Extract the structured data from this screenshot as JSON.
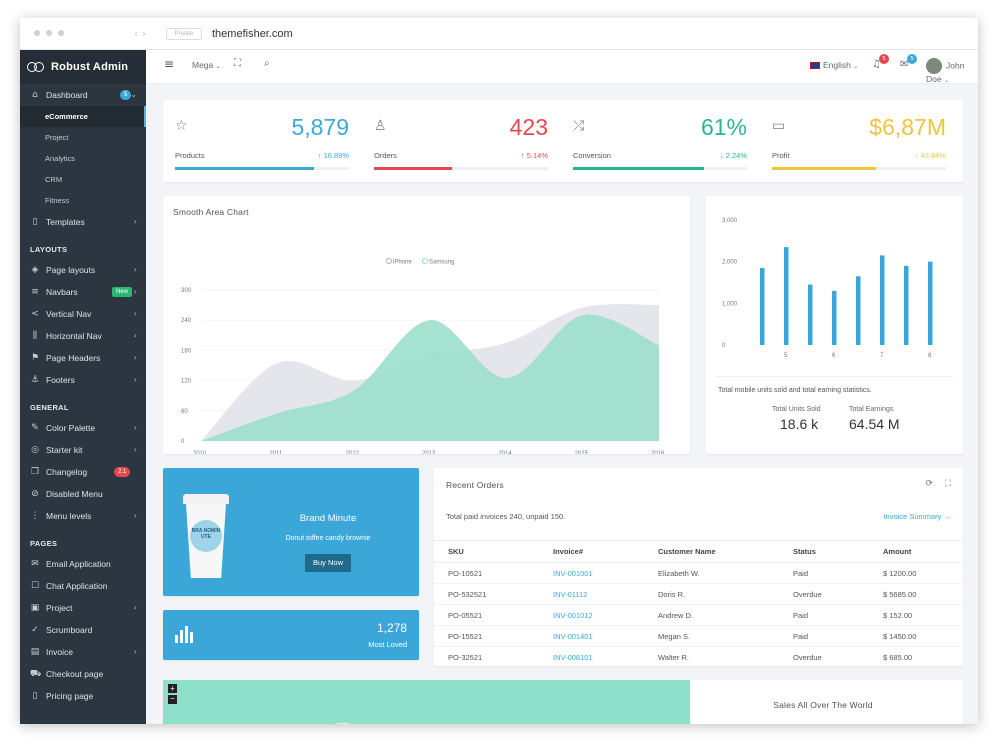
{
  "browser": {
    "url_tag": "Private",
    "url": "themefisher.com"
  },
  "brand": {
    "name": "Robust Admin"
  },
  "sidebar": {
    "dashboard": {
      "label": "Dashboard",
      "badge": "5"
    },
    "dashboard_sub": [
      "eCommerce",
      "Project",
      "Analytics",
      "CRM",
      "Fitness"
    ],
    "templates": "Templates",
    "layouts_title": "LAYOUTS",
    "layouts": [
      {
        "label": "Page layouts",
        "icon": "layers-icon"
      },
      {
        "label": "Navbars",
        "icon": "list-icon",
        "badge": "New"
      },
      {
        "label": "Vertical Nav",
        "icon": "share-icon"
      },
      {
        "label": "Horizontal Nav",
        "icon": "columns-icon"
      },
      {
        "label": "Page Headers",
        "icon": "signpost-icon"
      },
      {
        "label": "Footers",
        "icon": "anchor-icon"
      }
    ],
    "general_title": "GENERAL",
    "general": [
      {
        "label": "Color Palette",
        "icon": "pen-icon"
      },
      {
        "label": "Starter kit",
        "icon": "target-icon"
      },
      {
        "label": "Changelog",
        "icon": "copy-icon",
        "badge": "2.1"
      },
      {
        "label": "Disabled Menu",
        "icon": "ban-icon"
      },
      {
        "label": "Menu levels",
        "icon": "more-vertical-icon"
      }
    ],
    "pages_title": "PAGES",
    "pages": [
      {
        "label": "Email Application",
        "icon": "mail-icon"
      },
      {
        "label": "Chat Application",
        "icon": "chat-icon"
      },
      {
        "label": "Project",
        "icon": "briefcase-icon"
      },
      {
        "label": "Scrumboard",
        "icon": "check-circle-icon"
      },
      {
        "label": "Invoice",
        "icon": "file-icon"
      },
      {
        "label": "Checkout page",
        "icon": "cart-icon"
      },
      {
        "label": "Pricing page",
        "icon": "book-icon"
      }
    ]
  },
  "topbar": {
    "mega": "Mega",
    "language": "English",
    "notif_count": "5",
    "mail_count": "5",
    "user": "John Doe"
  },
  "stats": [
    {
      "label": "Products",
      "value": "5,879",
      "change": "16.89%",
      "color": "#3ba9d8",
      "progress": 0.8,
      "icon": "star-icon"
    },
    {
      "label": "Orders",
      "value": "423",
      "change": "5.14%",
      "color": "#e5484d",
      "progress": 0.45,
      "icon": "user-icon"
    },
    {
      "label": "Conversion",
      "value": "61%",
      "change": "2.24%",
      "color": "#2bb68f",
      "progress": 0.75,
      "icon": "shuffle-icon"
    },
    {
      "label": "Profit",
      "value": "$6,87M",
      "change": "43.84%",
      "color": "#f4c33c",
      "progress": 0.6,
      "icon": "folder-icon"
    }
  ],
  "area_chart": {
    "title": "Smooth Area Chart",
    "legend": [
      "iPhone",
      "Samsung"
    ]
  },
  "chart_data": [
    {
      "type": "area",
      "title": "Smooth Area Chart",
      "x": [
        "2010",
        "2011",
        "2012",
        "2013",
        "2014",
        "2015",
        "2016"
      ],
      "ylim": [
        0,
        300
      ],
      "yticks": [
        0,
        60,
        120,
        180,
        240,
        300
      ],
      "series": [
        {
          "name": "iPhone",
          "values": [
            0,
            55,
            100,
            240,
            125,
            250,
            190
          ],
          "color": "#9ee0cc"
        },
        {
          "name": "Samsung",
          "values": [
            0,
            155,
            120,
            170,
            195,
            265,
            270
          ],
          "color": "#e3e5ea"
        }
      ]
    },
    {
      "type": "bar",
      "categories": [
        "",
        "5",
        "",
        "6",
        "",
        "7",
        "",
        "8"
      ],
      "x_ticks": [
        "5",
        "6",
        "7",
        "8"
      ],
      "values": [
        1850,
        2350,
        1450,
        1300,
        1650,
        2150,
        1900,
        2000
      ],
      "ylim": [
        0,
        3000
      ],
      "yticks": [
        "0",
        "1,000",
        "2,000",
        "3,000"
      ]
    }
  ],
  "bar_card": {
    "caption": "Total mobile units sold and total earning statistics.",
    "units_label": "Total Units Sold",
    "units_value": "18.6 k",
    "earnings_label": "Total Earnings",
    "earnings_value": "64.54 M"
  },
  "promo": {
    "title": "Brand Minute",
    "subtitle": "Donut toffee candy brownie",
    "button": "Buy Now",
    "cup_text": "BRA NOMIN UTE"
  },
  "loved": {
    "value": "1,278",
    "label": "Most Loved"
  },
  "orders": {
    "title": "Recent Orders",
    "summary": "Total paid invoices 240, unpaid 150.",
    "link": "Invoice Summary →",
    "columns": [
      "SKU",
      "Invoice#",
      "Customer Name",
      "Status",
      "Amount"
    ],
    "rows": [
      [
        "PO-10521",
        "INV-001001",
        "Elizabeth W.",
        "Paid",
        "$ 1200.00"
      ],
      [
        "PO-532521",
        "INV-01112",
        "Doris R.",
        "Overdue",
        "$ 5685.00"
      ],
      [
        "PO-05521",
        "INV-001012",
        "Andrew D.",
        "Paid",
        "$ 152.00"
      ],
      [
        "PO-15521",
        "INV-001401",
        "Megan S.",
        "Paid",
        "$ 1450.00"
      ],
      [
        "PO-32521",
        "INV-008101",
        "Walter R.",
        "Overdue",
        "$ 685.00"
      ]
    ]
  },
  "world": {
    "title": "Sales All Over The World"
  }
}
